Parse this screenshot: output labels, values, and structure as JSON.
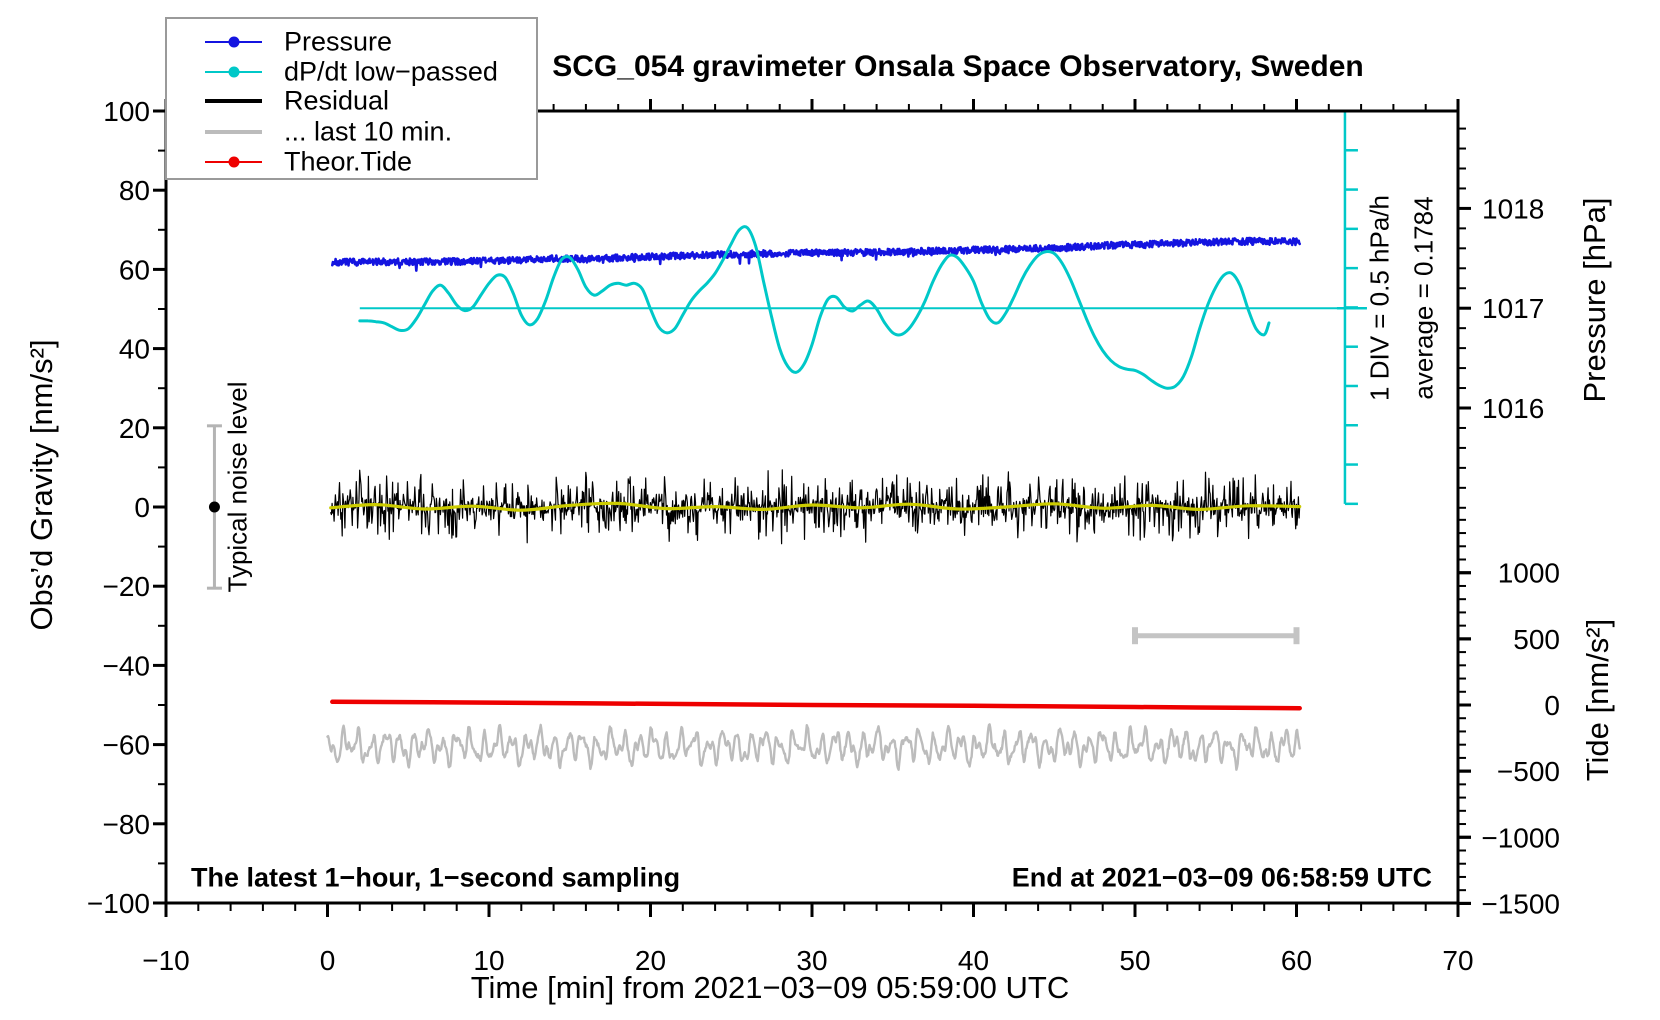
{
  "chart_data": {
    "type": "line",
    "title": "SCG_054 gravimeter Onsala Space Observatory, Sweden",
    "xlabel": "Time [min] from 2021−03−09 05:59:00 UTC",
    "ylabel_left": "Obs’d Gravity [nm/s²]",
    "ylabel_pressure": "Pressure [hPa]",
    "ylabel_tide": "Tide [nm/s²]",
    "notes": {
      "sampling": "The latest 1−hour, 1−second sampling",
      "end": "End at 2021−03−09 06:58:59 UTC",
      "noise_level": "Typical noise level",
      "div_scale": "1 DIV = 0.5 hPa/h",
      "average": "average = 0.1784"
    },
    "axes": {
      "x": {
        "range": [
          -10,
          70
        ],
        "major_step": 10,
        "minor_step": 2,
        "grid": false
      },
      "gravity": {
        "range": [
          -100,
          100
        ],
        "major_step": 20,
        "minor_step": 10
      },
      "pressure": {
        "majors": [
          1016,
          1017,
          1018
        ],
        "minor_step": 0.2,
        "minor_start": 1015.0,
        "minor_end": 1018.8,
        "gravity_at_1017": 50.2,
        "gravity_per_hpa": 25.2
      },
      "tide": {
        "majors": [
          1000,
          500,
          0,
          -500,
          -1000,
          -1500
        ],
        "minor_step": 100,
        "minor_start": 1400,
        "minor_end": -1500,
        "gravity_at_0": -50.0,
        "gravity_per_unit": 0.0334
      }
    },
    "colors": {
      "pressure": "#1414e0",
      "dpdt": "#00c8c8",
      "residual": "#000000",
      "residual_smooth": "#cccc00",
      "last10": "#bcbcbc",
      "tide": "#ee0000",
      "scalebar": "#c4c4c4",
      "noisebar": "#b4b4b4",
      "frame": "#000000"
    },
    "series": [
      {
        "id": "last10",
        "style": "synth",
        "color": "#bcbcbc",
        "width": 2.4,
        "t_start": 0,
        "t_end": 60.2,
        "step": 0.04,
        "base": -60.5,
        "jitter": 0.5,
        "seed": 11,
        "components": [
          [
            2.6,
            1.15,
            0.5
          ],
          [
            1.5,
            2.05,
            2.0
          ],
          [
            1.1,
            0.43,
            4.0
          ],
          [
            0.8,
            3.1,
            1.1
          ]
        ]
      },
      {
        "id": "theor_tide",
        "style": "smooth",
        "color": "#ee0000",
        "width": 4.5,
        "points": [
          [
            0.3,
            -49.2
          ],
          [
            10,
            -49.4
          ],
          [
            20,
            -49.7
          ],
          [
            30,
            -50.0
          ],
          [
            40,
            -50.2
          ],
          [
            50,
            -50.5
          ],
          [
            60.2,
            -50.8
          ]
        ]
      },
      {
        "id": "residual",
        "style": "noisy",
        "color": "#000000",
        "width": 1.2,
        "trend": [
          [
            0.2,
            0
          ],
          [
            60.2,
            0
          ]
        ],
        "pps": 24,
        "amp": 2.1,
        "spike_amp": 7.6,
        "seed": 3,
        "follow": "residual_smooth",
        "follow_gain": 0.7
      },
      {
        "id": "residual_smooth",
        "style": "smooth",
        "color": "#cccc00",
        "width": 3.2,
        "points": [
          [
            0.2,
            -0.2
          ],
          [
            3,
            0.6
          ],
          [
            6,
            -0.5
          ],
          [
            9,
            0.2
          ],
          [
            12,
            -0.8
          ],
          [
            15,
            0.4
          ],
          [
            18,
            0.9
          ],
          [
            21,
            -0.4
          ],
          [
            24,
            0.1
          ],
          [
            27,
            -0.6
          ],
          [
            30,
            0.5
          ],
          [
            33,
            -0.2
          ],
          [
            36,
            0.7
          ],
          [
            39,
            -0.5
          ],
          [
            42,
            0.0
          ],
          [
            45,
            0.8
          ],
          [
            48,
            -0.3
          ],
          [
            51,
            0.4
          ],
          [
            54,
            -0.6
          ],
          [
            57,
            0.3
          ],
          [
            60.2,
            0.1
          ]
        ]
      },
      {
        "id": "pressure",
        "style": "noisy",
        "color": "#1414e0",
        "width": 2.6,
        "trend": [
          [
            0.3,
            61.8
          ],
          [
            4,
            61.9
          ],
          [
            8,
            62.0
          ],
          [
            12,
            62.3
          ],
          [
            14,
            62.8
          ],
          [
            16,
            62.6
          ],
          [
            20,
            63.2
          ],
          [
            24,
            63.7
          ],
          [
            27,
            64.0
          ],
          [
            30,
            64.2
          ],
          [
            34,
            64.3
          ],
          [
            38,
            64.7
          ],
          [
            42,
            65.1
          ],
          [
            45,
            65.4
          ],
          [
            48,
            66.0
          ],
          [
            51,
            66.4
          ],
          [
            54,
            66.8
          ],
          [
            57,
            67.1
          ],
          [
            60.2,
            67.0
          ]
        ],
        "pps": 30,
        "amp": 0.85,
        "spike_amp": 0,
        "seed": 7,
        "down_outlier_rate": 0.012,
        "down_outlier_amp": 2.2
      },
      {
        "id": "dpdt",
        "style": "smooth",
        "color": "#00c8c8",
        "width": 3,
        "points": [
          [
            2,
            47
          ],
          [
            2.5,
            47
          ],
          [
            3,
            46.8
          ],
          [
            3.5,
            46.5
          ],
          [
            4,
            45.5
          ],
          [
            4.5,
            44.6
          ],
          [
            5,
            45
          ],
          [
            5.5,
            47.5
          ],
          [
            6,
            51
          ],
          [
            6.5,
            54.5
          ],
          [
            7,
            56
          ],
          [
            7.5,
            54
          ],
          [
            8,
            51
          ],
          [
            8.5,
            49.6
          ],
          [
            9,
            50.5
          ],
          [
            9.5,
            53.5
          ],
          [
            10,
            56.5
          ],
          [
            10.5,
            58.5
          ],
          [
            11,
            58
          ],
          [
            11.5,
            54
          ],
          [
            12,
            48.5
          ],
          [
            12.5,
            46
          ],
          [
            13,
            47.5
          ],
          [
            13.5,
            52
          ],
          [
            14,
            58
          ],
          [
            14.5,
            62.5
          ],
          [
            15,
            63
          ],
          [
            15.5,
            60
          ],
          [
            16,
            55.5
          ],
          [
            16.5,
            53.5
          ],
          [
            17,
            54.5
          ],
          [
            17.5,
            56
          ],
          [
            18,
            56.5
          ],
          [
            18.5,
            56
          ],
          [
            19,
            56.5
          ],
          [
            19.5,
            55
          ],
          [
            20,
            50
          ],
          [
            20.5,
            45.5
          ],
          [
            21,
            44
          ],
          [
            21.5,
            45
          ],
          [
            22,
            48.5
          ],
          [
            22.5,
            52
          ],
          [
            23,
            54.5
          ],
          [
            23.5,
            56.5
          ],
          [
            24,
            59
          ],
          [
            24.5,
            62.5
          ],
          [
            25,
            66.5
          ],
          [
            25.5,
            70
          ],
          [
            26,
            70.5
          ],
          [
            26.5,
            66
          ],
          [
            27,
            57
          ],
          [
            27.5,
            48
          ],
          [
            28,
            40
          ],
          [
            28.5,
            35.5
          ],
          [
            29,
            34
          ],
          [
            29.5,
            36
          ],
          [
            30,
            41
          ],
          [
            30.5,
            48
          ],
          [
            31,
            52.5
          ],
          [
            31.5,
            53
          ],
          [
            32,
            50.5
          ],
          [
            32.5,
            49.5
          ],
          [
            33,
            51
          ],
          [
            33.5,
            52
          ],
          [
            34,
            50
          ],
          [
            34.5,
            46.5
          ],
          [
            35,
            44
          ],
          [
            35.5,
            43.5
          ],
          [
            36,
            45
          ],
          [
            36.5,
            48
          ],
          [
            37,
            52
          ],
          [
            37.5,
            57
          ],
          [
            38,
            61
          ],
          [
            38.5,
            63.5
          ],
          [
            39,
            63
          ],
          [
            39.5,
            60.5
          ],
          [
            40,
            57
          ],
          [
            40.5,
            51.5
          ],
          [
            41,
            47.5
          ],
          [
            41.5,
            46.5
          ],
          [
            42,
            49
          ],
          [
            42.5,
            53
          ],
          [
            43,
            57.5
          ],
          [
            43.5,
            61
          ],
          [
            44,
            63.5
          ],
          [
            44.5,
            64.5
          ],
          [
            45,
            64
          ],
          [
            45.5,
            61.5
          ],
          [
            46,
            57.5
          ],
          [
            46.5,
            52.5
          ],
          [
            47,
            47.5
          ],
          [
            47.5,
            43
          ],
          [
            48,
            39.5
          ],
          [
            48.5,
            37
          ],
          [
            49,
            35.5
          ],
          [
            49.5,
            34.8
          ],
          [
            50,
            34.5
          ],
          [
            50.5,
            33.5
          ],
          [
            51,
            32
          ],
          [
            51.5,
            30.7
          ],
          [
            52,
            30
          ],
          [
            52.5,
            30.5
          ],
          [
            53,
            33
          ],
          [
            53.5,
            38
          ],
          [
            54,
            45
          ],
          [
            54.5,
            51
          ],
          [
            55,
            55.5
          ],
          [
            55.5,
            58.5
          ],
          [
            56,
            59
          ],
          [
            56.5,
            56
          ],
          [
            57,
            50
          ],
          [
            57.5,
            45
          ],
          [
            58,
            43.5
          ],
          [
            58.3,
            46.5
          ]
        ]
      }
    ],
    "annotations": {
      "dpdt_zero_line": {
        "gravity": 50.2,
        "from_min": 2,
        "to_min": 63.6,
        "color": "#00c8c8",
        "width": 2
      },
      "dpdt_scale_bar": {
        "min": 63,
        "from_gravity": 100,
        "to_gravity": 0.8,
        "divisions": 10,
        "tick_len": 13,
        "long_tick_at_gravity": 50.2,
        "color": "#00c8c8",
        "width": 2.5
      },
      "gray_scale_bar": {
        "from_min": 50,
        "to_min": 60,
        "gravity": -32.5,
        "color": "#c4c4c4",
        "width": 5,
        "cap_height": 17
      },
      "noise_errorbar": {
        "min": -7,
        "center_gravity": 0,
        "half_span": 20.5,
        "color": "#b4b4b4",
        "width": 3,
        "cap_width": 15,
        "dot_color": "#000000",
        "dot_r": 5.5
      }
    }
  },
  "legend": {
    "items": [
      {
        "label": "Pressure",
        "color": "#1414e0",
        "marker": "line-dot",
        "line_width": 2
      },
      {
        "label": "dP/dt low−passed",
        "color": "#00c8c8",
        "marker": "line-dot",
        "line_width": 2
      },
      {
        "label": "Residual",
        "color": "#000000",
        "marker": "line",
        "line_width": 4
      },
      {
        "label": "... last 10 min.",
        "color": "#bcbcbc",
        "marker": "line",
        "line_width": 4
      },
      {
        "label": "Theor.Tide",
        "color": "#ee0000",
        "marker": "line-dot",
        "line_width": 2
      }
    ]
  }
}
